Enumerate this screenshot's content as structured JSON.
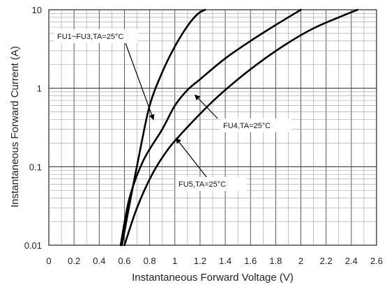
{
  "chart_data": {
    "type": "line",
    "xlabel": "Instantaneous Forward Voltage (V)",
    "ylabel": "Instantaneous Forward Current (A)",
    "x_scale": "linear",
    "y_scale": "log",
    "xlim": [
      0,
      2.6
    ],
    "ylim": [
      0.01,
      10
    ],
    "grid": true,
    "x_ticks": [
      "0",
      "0.2",
      "0.4",
      "0.6",
      "0.8",
      "1",
      "1.2",
      "1.4",
      "1.6",
      "1.8",
      "2",
      "2.2",
      "2.4",
      "2.6"
    ],
    "y_ticks": [
      "0.01",
      "0.1",
      "1",
      "10"
    ],
    "series": [
      {
        "name": "FU1~FU3,TA=25°C",
        "x": [
          0.58,
          0.65,
          0.72,
          0.8,
          0.9,
          1.0,
          1.1,
          1.18,
          1.24
        ],
        "y": [
          0.01,
          0.04,
          0.15,
          0.6,
          1.6,
          3.4,
          6.2,
          8.8,
          10
        ]
      },
      {
        "name": "FU4,TA=25°C",
        "x": [
          0.57,
          0.64,
          0.75,
          0.9,
          1.0,
          1.1,
          1.2,
          1.4,
          1.6,
          1.8,
          2.0
        ],
        "y": [
          0.01,
          0.04,
          0.12,
          0.3,
          0.6,
          0.95,
          1.3,
          2.4,
          4.0,
          6.4,
          10
        ]
      },
      {
        "name": "FU5,TA=25°C",
        "x": [
          0.6,
          0.7,
          0.82,
          0.95,
          1.1,
          1.3,
          1.5,
          1.7,
          1.9,
          2.1,
          2.3,
          2.45
        ],
        "y": [
          0.01,
          0.03,
          0.08,
          0.17,
          0.32,
          0.68,
          1.3,
          2.3,
          3.8,
          5.8,
          8.0,
          10
        ]
      }
    ],
    "annotations": [
      {
        "text": "FU1~FU3,TA=25°C",
        "series": 0,
        "point": [
          0.83,
          0.4
        ]
      },
      {
        "text": "FU4,TA=25°C",
        "series": 1,
        "point": [
          1.16,
          0.82
        ]
      },
      {
        "text": "FU5,TA=25°C",
        "series": 2,
        "point": [
          1.01,
          0.23
        ]
      }
    ]
  }
}
